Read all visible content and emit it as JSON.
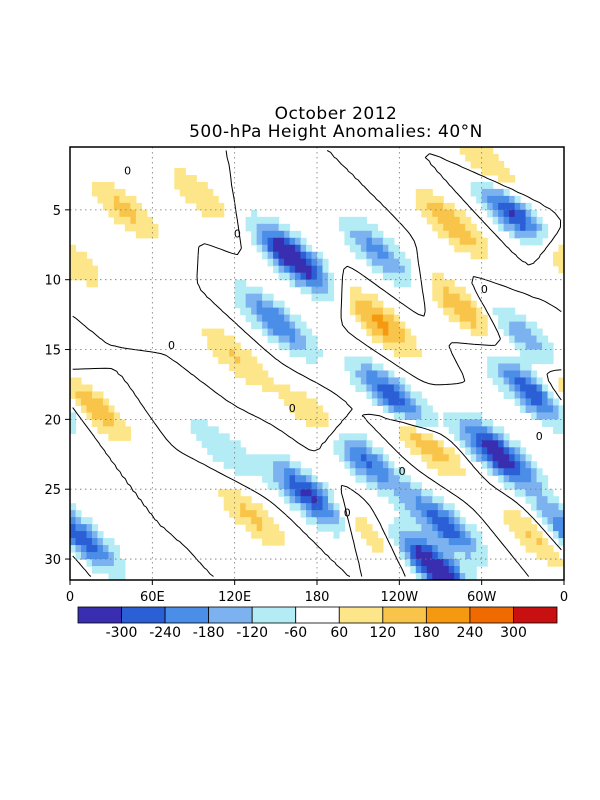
{
  "chart_data": {
    "type": "heatmap",
    "title": "October 2012",
    "subtitle": "500-hPa Height Anomalies: 40°N",
    "x_axis": {
      "range": [
        "0",
        "0"
      ],
      "ticks": [
        "0",
        "60E",
        "120E",
        "180",
        "120W",
        "60W",
        "0"
      ]
    },
    "y_axis": {
      "range": [
        1,
        31
      ],
      "ticks": [
        "5",
        "10",
        "15",
        "20",
        "25",
        "30"
      ]
    },
    "grid": true,
    "contour_label": "0",
    "colorbar": {
      "levels": [
        "-300",
        "-240",
        "-180",
        "-120",
        "-60",
        "60",
        "120",
        "180",
        "240",
        "300"
      ],
      "colors": [
        "#3a2eb0",
        "#2a5fd6",
        "#4a8ee8",
        "#7db2f0",
        "#b4ecf5",
        "#ffffff",
        "#fde68a",
        "#f9c44a",
        "#f59a10",
        "#ef6a00",
        "#c81010"
      ]
    },
    "anomaly_features": [
      {
        "lon": 163,
        "day": 8.5,
        "value": -300
      },
      {
        "lon": 150,
        "day": 13,
        "value": -180
      },
      {
        "lon": 225,
        "day": 8,
        "value": -150
      },
      {
        "lon": 236,
        "day": 18.5,
        "value": -240
      },
      {
        "lon": 210,
        "day": 22.5,
        "value": -240
      },
      {
        "lon": 175,
        "day": 25.5,
        "value": -240
      },
      {
        "lon": 326,
        "day": 5.5,
        "value": -270
      },
      {
        "lon": 335,
        "day": 18,
        "value": -210
      },
      {
        "lon": 312,
        "day": 22.5,
        "value": -270
      },
      {
        "lon": 272,
        "day": 27.5,
        "value": -210
      },
      {
        "lon": 265,
        "day": 30.5,
        "value": -300
      },
      {
        "lon": 8,
        "day": 28.5,
        "value": -210
      },
      {
        "lon": 110,
        "day": 22,
        "value": -90
      },
      {
        "lon": 330,
        "day": 14,
        "value": -120
      },
      {
        "lon": 15,
        "day": 19,
        "value": 130
      },
      {
        "lon": 40,
        "day": 5,
        "value": 100
      },
      {
        "lon": 225,
        "day": 13,
        "value": 150
      },
      {
        "lon": 187,
        "day": 20.5,
        "value": 150
      },
      {
        "lon": 258,
        "day": 21.5,
        "value": 150
      },
      {
        "lon": 278,
        "day": 6,
        "value": 130
      },
      {
        "lon": 285,
        "day": 12,
        "value": 130
      },
      {
        "lon": 355,
        "day": 8,
        "value": 130
      },
      {
        "lon": 215,
        "day": 28,
        "value": 100
      },
      {
        "lon": 133,
        "day": 27,
        "value": 100
      },
      {
        "lon": 120,
        "day": 15.5,
        "value": 90
      },
      {
        "lon": 95,
        "day": 4,
        "value": 80
      },
      {
        "lon": 340,
        "day": 28.5,
        "value": 100
      },
      {
        "lon": 306,
        "day": 2,
        "value": 100
      }
    ]
  }
}
